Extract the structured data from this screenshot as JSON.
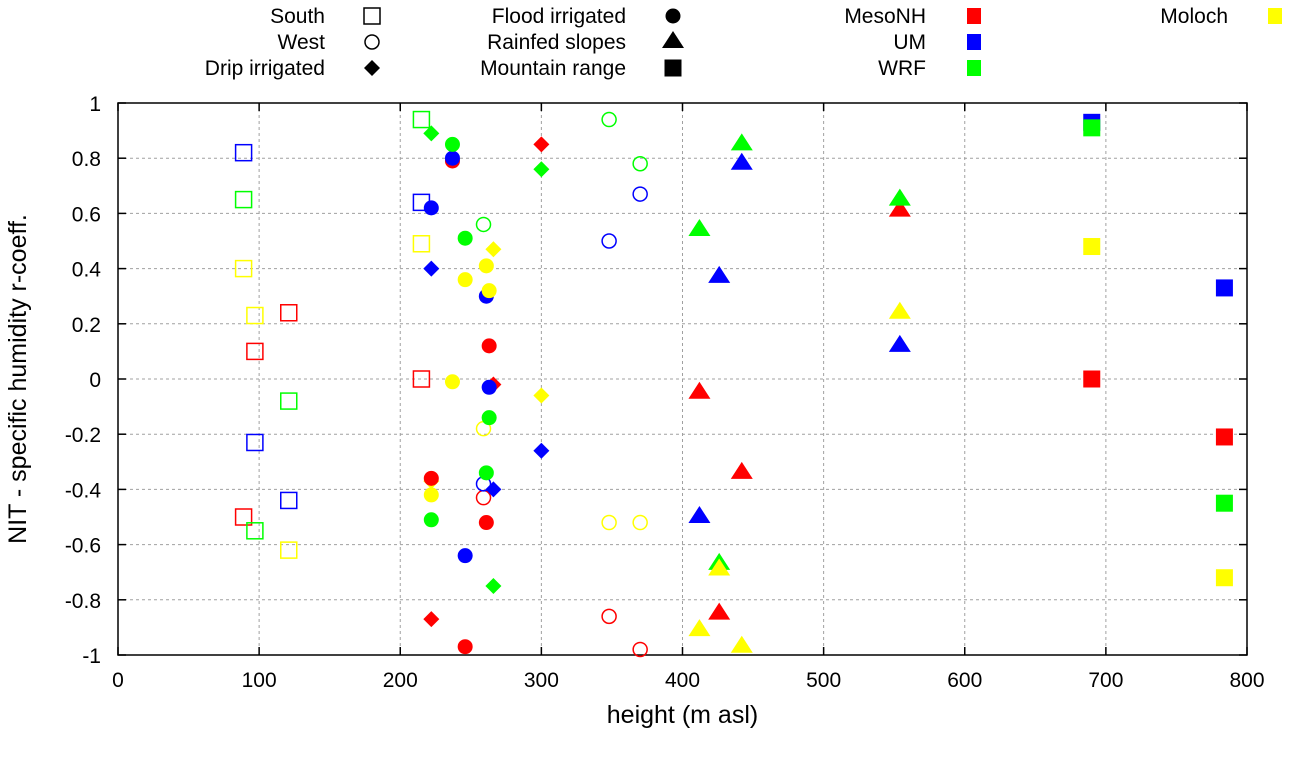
{
  "chart_data": {
    "type": "scatter",
    "title": "",
    "xlabel": "height (m asl)",
    "ylabel": "NIT - specific humidity r-coeff.",
    "xlim": [
      0,
      800
    ],
    "ylim": [
      -1,
      1
    ],
    "xticks": [
      "0",
      "100",
      "200",
      "300",
      "400",
      "500",
      "600",
      "700",
      "800"
    ],
    "yticks": [
      "1",
      "0.8",
      "0.6",
      "0.4",
      "0.2",
      "0",
      "-0.2",
      "-0.4",
      "-0.6",
      "-0.8",
      "-1"
    ],
    "xtick_values": [
      0,
      100,
      200,
      300,
      400,
      500,
      600,
      700,
      800
    ],
    "ytick_values": [
      1,
      0.8,
      0.6,
      0.4,
      0.2,
      0,
      -0.2,
      -0.4,
      -0.6,
      -0.8,
      -1
    ],
    "grid": true,
    "legend_placement": "top (above plot)",
    "site_legend": [
      {
        "name": "South",
        "marker": "square-open"
      },
      {
        "name": "West",
        "marker": "circle-open"
      },
      {
        "name": "Drip irrigated",
        "marker": "diamond"
      },
      {
        "name": "Flood irrigated",
        "marker": "circle"
      },
      {
        "name": "Rainfed slopes",
        "marker": "triangle"
      },
      {
        "name": "Mountain range",
        "marker": "square"
      }
    ],
    "model_legend": [
      {
        "name": "MesoNH",
        "color": "#ff0000"
      },
      {
        "name": "UM",
        "color": "#0000ff"
      },
      {
        "name": "WRF",
        "color": "#00ff00"
      },
      {
        "name": "Moloch",
        "color": "#ffff00"
      }
    ],
    "series": [
      {
        "site": "South",
        "marker": "square-open",
        "points": [
          {
            "x": 89,
            "MesoNH": -0.5,
            "UM": 0.82,
            "WRF": 0.65,
            "Moloch": 0.4
          },
          {
            "x": 97,
            "MesoNH": 0.1,
            "UM": -0.23,
            "WRF": -0.55,
            "Moloch": 0.23
          },
          {
            "x": 121,
            "MesoNH": 0.24,
            "UM": -0.44,
            "WRF": -0.08,
            "Moloch": -0.62
          },
          {
            "x": 215,
            "MesoNH": 0.0,
            "UM": 0.64,
            "WRF": 0.94,
            "Moloch": 0.49
          }
        ]
      },
      {
        "site": "West",
        "marker": "circle-open",
        "points": [
          {
            "x": 259,
            "MesoNH": -0.43,
            "UM": -0.38,
            "WRF": 0.56,
            "Moloch": -0.18
          },
          {
            "x": 348,
            "MesoNH": -0.86,
            "UM": 0.5,
            "WRF": 0.94,
            "Moloch": -0.52
          },
          {
            "x": 370,
            "MesoNH": -0.98,
            "UM": 0.67,
            "WRF": 0.78,
            "Moloch": -0.52
          }
        ]
      },
      {
        "site": "Drip irrigated",
        "marker": "diamond",
        "points": [
          {
            "x": 222,
            "MesoNH": -0.87,
            "UM": 0.4,
            "WRF": 0.89,
            "Moloch": -0.37
          },
          {
            "x": 266,
            "MesoNH": -0.02,
            "UM": -0.4,
            "WRF": -0.75,
            "Moloch": 0.47
          },
          {
            "x": 300,
            "MesoNH": 0.85,
            "UM": -0.26,
            "WRF": 0.76,
            "Moloch": -0.06
          }
        ]
      },
      {
        "site": "Flood irrigated",
        "marker": "circle",
        "points": [
          {
            "x": 222,
            "MesoNH": -0.36,
            "UM": 0.62,
            "WRF": -0.51,
            "Moloch": -0.42
          },
          {
            "x": 237,
            "MesoNH": 0.79,
            "UM": 0.8,
            "WRF": 0.85,
            "Moloch": -0.01
          },
          {
            "x": 246,
            "MesoNH": -0.97,
            "UM": -0.64,
            "WRF": 0.51,
            "Moloch": 0.36
          },
          {
            "x": 261,
            "MesoNH": -0.52,
            "UM": 0.3,
            "WRF": -0.34,
            "Moloch": 0.41
          },
          {
            "x": 263,
            "MesoNH": 0.12,
            "UM": -0.03,
            "WRF": -0.14,
            "Moloch": 0.32
          }
        ]
      },
      {
        "site": "Rainfed slopes",
        "marker": "triangle",
        "points": [
          {
            "x": 412,
            "MesoNH": -0.05,
            "UM": -0.5,
            "WRF": 0.54,
            "Moloch": -0.91
          },
          {
            "x": 426,
            "MesoNH": -0.85,
            "UM": 0.37,
            "WRF": -0.67,
            "Moloch": -0.69
          },
          {
            "x": 442,
            "MesoNH": -0.34,
            "UM": 0.78,
            "WRF": 0.85,
            "Moloch": -0.97
          },
          {
            "x": 554,
            "MesoNH": 0.61,
            "UM": 0.12,
            "WRF": 0.65,
            "Moloch": 0.24
          }
        ]
      },
      {
        "site": "Mountain range",
        "marker": "square",
        "points": [
          {
            "x": 690,
            "MesoNH": 0.0,
            "UM": 0.93,
            "WRF": 0.91,
            "Moloch": 0.48
          },
          {
            "x": 784,
            "MesoNH": -0.21,
            "UM": 0.33,
            "WRF": -0.45,
            "Moloch": -0.72
          }
        ]
      }
    ]
  }
}
